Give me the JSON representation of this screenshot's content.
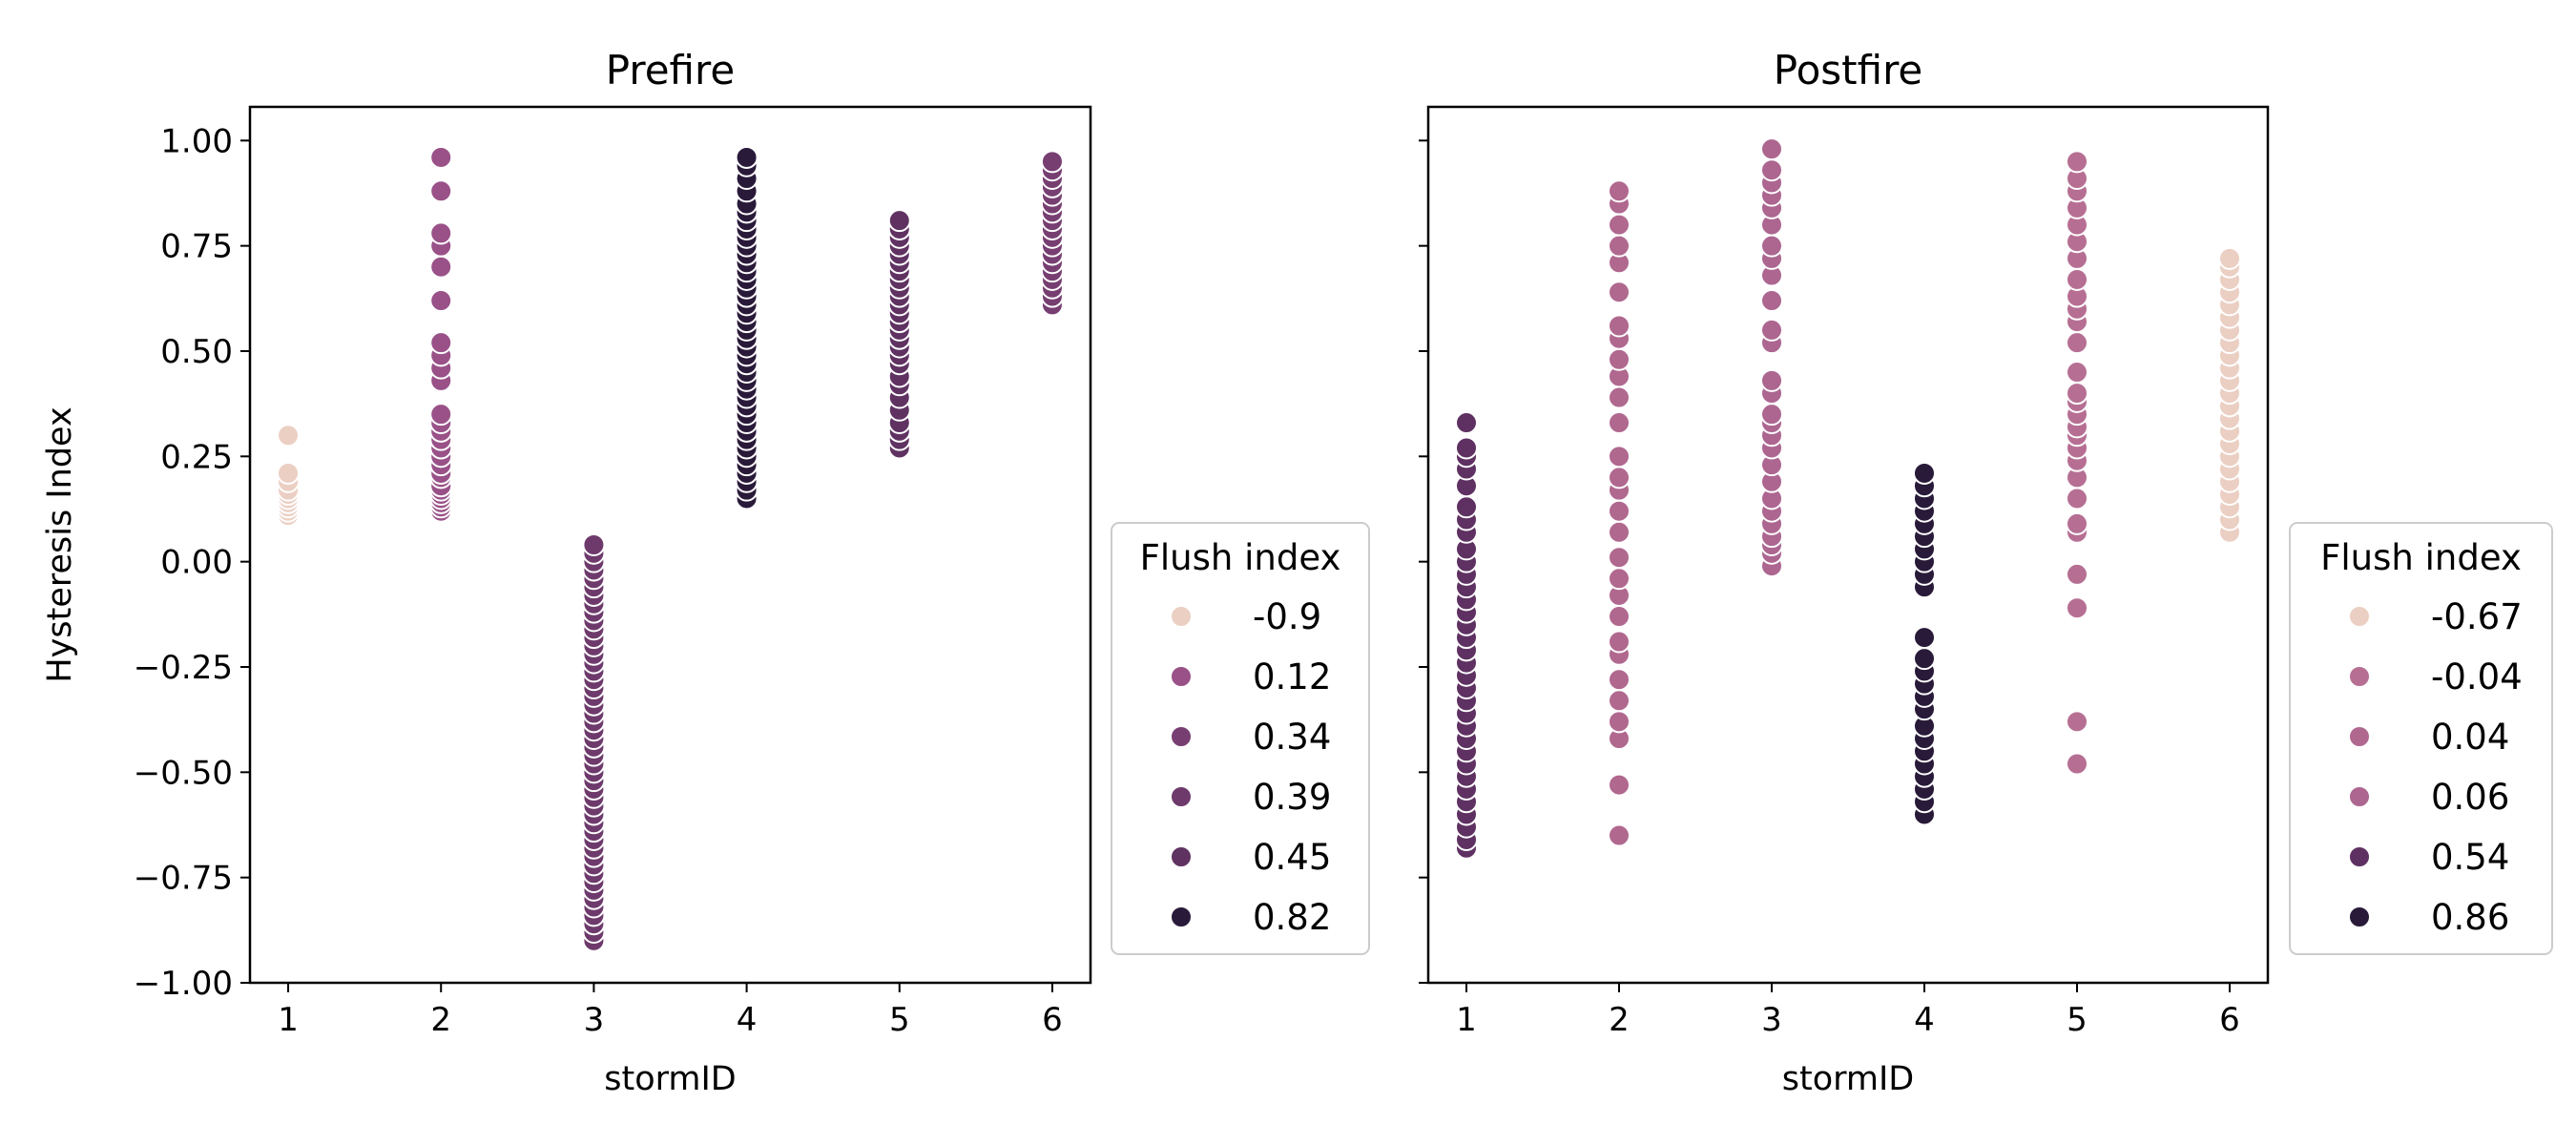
{
  "figure": {
    "background": "#ffffff",
    "shared_ylabel": "Hysteresis Index"
  },
  "chart_data": [
    {
      "type": "scatter",
      "title": "Prefire",
      "xlabel": "stormID",
      "ylabel": "Hysteresis Index",
      "xlim": [
        0.75,
        6.25
      ],
      "ylim": [
        -1.0,
        1.08
      ],
      "xticks": [
        1,
        2,
        3,
        4,
        5,
        6
      ],
      "yticks": [
        -1.0,
        -0.75,
        -0.5,
        -0.25,
        0.0,
        0.25,
        0.5,
        0.75,
        1.0
      ],
      "ytick_labels": [
        "−1.00",
        "−0.75",
        "−0.50",
        "−0.25",
        "0.00",
        "0.25",
        "0.50",
        "0.75",
        "1.00"
      ],
      "grid": false,
      "legend": {
        "title": "Flush index",
        "placement": "outside-right",
        "entries": [
          {
            "label": "-0.9",
            "color": "#ebcfc3"
          },
          {
            "label": "0.12",
            "color": "#995188"
          },
          {
            "label": "0.34",
            "color": "#773e72"
          },
          {
            "label": "0.39",
            "color": "#6e3a6c"
          },
          {
            "label": "0.45",
            "color": "#5f3262"
          },
          {
            "label": "0.82",
            "color": "#2a1a3a"
          }
        ]
      },
      "series": [
        {
          "x": 1,
          "flush_index": "-0.9",
          "color": "#ebcfc3",
          "y": [
            0.11,
            0.12,
            0.13,
            0.14,
            0.15,
            0.16,
            0.17,
            0.19,
            0.21,
            0.3
          ]
        },
        {
          "x": 2,
          "flush_index": "0.12",
          "color": "#995188",
          "y": [
            0.12,
            0.13,
            0.14,
            0.15,
            0.16,
            0.17,
            0.18,
            0.2,
            0.21,
            0.23,
            0.25,
            0.27,
            0.29,
            0.31,
            0.33,
            0.35,
            0.43,
            0.46,
            0.49,
            0.52,
            0.62,
            0.7,
            0.75,
            0.78,
            0.88,
            0.96
          ]
        },
        {
          "x": 3,
          "flush_index": "0.39",
          "color": "#6e3a6c",
          "y": [
            -0.9,
            -0.88,
            -0.86,
            -0.84,
            -0.82,
            -0.8,
            -0.78,
            -0.76,
            -0.74,
            -0.72,
            -0.7,
            -0.68,
            -0.66,
            -0.64,
            -0.62,
            -0.6,
            -0.58,
            -0.56,
            -0.54,
            -0.52,
            -0.5,
            -0.48,
            -0.46,
            -0.44,
            -0.42,
            -0.4,
            -0.38,
            -0.36,
            -0.34,
            -0.32,
            -0.3,
            -0.28,
            -0.26,
            -0.24,
            -0.22,
            -0.2,
            -0.18,
            -0.16,
            -0.14,
            -0.12,
            -0.1,
            -0.08,
            -0.06,
            -0.04,
            -0.02,
            0.0,
            0.02,
            0.04
          ]
        },
        {
          "x": 4,
          "flush_index": "0.82",
          "color": "#2a1a3a",
          "y": [
            0.15,
            0.17,
            0.19,
            0.21,
            0.23,
            0.25,
            0.27,
            0.29,
            0.31,
            0.33,
            0.35,
            0.37,
            0.39,
            0.41,
            0.43,
            0.45,
            0.47,
            0.49,
            0.51,
            0.53,
            0.55,
            0.57,
            0.59,
            0.61,
            0.63,
            0.65,
            0.67,
            0.69,
            0.71,
            0.73,
            0.75,
            0.77,
            0.79,
            0.81,
            0.83,
            0.85,
            0.88,
            0.91,
            0.94,
            0.96
          ]
        },
        {
          "x": 5,
          "flush_index": "0.45",
          "color": "#5f3262",
          "y": [
            0.27,
            0.29,
            0.31,
            0.33,
            0.36,
            0.39,
            0.42,
            0.44,
            0.47,
            0.49,
            0.51,
            0.53,
            0.55,
            0.57,
            0.59,
            0.61,
            0.63,
            0.65,
            0.67,
            0.69,
            0.71,
            0.73,
            0.75,
            0.77,
            0.79,
            0.81
          ]
        },
        {
          "x": 6,
          "flush_index": "0.34",
          "color": "#773e72",
          "y": [
            0.61,
            0.63,
            0.65,
            0.67,
            0.69,
            0.71,
            0.73,
            0.75,
            0.77,
            0.79,
            0.81,
            0.83,
            0.85,
            0.87,
            0.89,
            0.91,
            0.93,
            0.95
          ]
        }
      ]
    },
    {
      "type": "scatter",
      "title": "Postfire",
      "xlabel": "stormID",
      "ylabel": "",
      "xlim": [
        0.75,
        6.25
      ],
      "ylim": [
        -1.0,
        1.08
      ],
      "xticks": [
        1,
        2,
        3,
        4,
        5,
        6
      ],
      "yticks": [
        -1.0,
        -0.75,
        -0.5,
        -0.25,
        0.0,
        0.25,
        0.5,
        0.75,
        1.0
      ],
      "ytick_labels": [],
      "grid": false,
      "legend": {
        "title": "Flush index",
        "placement": "outside-right",
        "entries": [
          {
            "label": "-0.67",
            "color": "#ebcfc3"
          },
          {
            "label": "-0.04",
            "color": "#b66f93"
          },
          {
            "label": "0.04",
            "color": "#b0688f"
          },
          {
            "label": "0.06",
            "color": "#ac6690"
          },
          {
            "label": "0.54",
            "color": "#5e3162"
          },
          {
            "label": "0.86",
            "color": "#281a38"
          }
        ]
      },
      "series": [
        {
          "x": 1,
          "flush_index": "0.54",
          "color": "#5e3162",
          "y": [
            -0.68,
            -0.66,
            -0.63,
            -0.6,
            -0.57,
            -0.54,
            -0.51,
            -0.48,
            -0.45,
            -0.42,
            -0.39,
            -0.36,
            -0.33,
            -0.3,
            -0.27,
            -0.24,
            -0.21,
            -0.18,
            -0.15,
            -0.12,
            -0.09,
            -0.06,
            -0.03,
            0.0,
            0.03,
            0.07,
            0.1,
            0.13,
            0.18,
            0.22,
            0.25,
            0.27,
            0.33
          ]
        },
        {
          "x": 2,
          "flush_index": "0.04",
          "color": "#b0688f",
          "y": [
            -0.65,
            -0.53,
            -0.42,
            -0.38,
            -0.33,
            -0.28,
            -0.22,
            -0.19,
            -0.13,
            -0.08,
            -0.04,
            0.01,
            0.07,
            0.12,
            0.17,
            0.2,
            0.25,
            0.33,
            0.39,
            0.44,
            0.48,
            0.53,
            0.56,
            0.64,
            0.71,
            0.75,
            0.8,
            0.85,
            0.88
          ]
        },
        {
          "x": 3,
          "flush_index": "0.06",
          "color": "#ac6690",
          "y": [
            -0.01,
            0.02,
            0.04,
            0.06,
            0.09,
            0.12,
            0.15,
            0.19,
            0.23,
            0.27,
            0.3,
            0.33,
            0.35,
            0.4,
            0.43,
            0.52,
            0.55,
            0.62,
            0.68,
            0.72,
            0.75,
            0.8,
            0.84,
            0.87,
            0.9,
            0.93,
            0.98
          ]
        },
        {
          "x": 4,
          "flush_index": "0.86",
          "color": "#281a38",
          "y": [
            -0.6,
            -0.57,
            -0.54,
            -0.51,
            -0.48,
            -0.45,
            -0.42,
            -0.39,
            -0.35,
            -0.32,
            -0.29,
            -0.26,
            -0.23,
            -0.18,
            -0.06,
            -0.03,
            0.0,
            0.03,
            0.06,
            0.09,
            0.12,
            0.15,
            0.18,
            0.21
          ]
        },
        {
          "x": 5,
          "flush_index": "-0.04",
          "color": "#b66f93",
          "y": [
            -0.48,
            -0.38,
            -0.11,
            -0.03,
            0.07,
            0.09,
            0.15,
            0.2,
            0.24,
            0.27,
            0.3,
            0.32,
            0.35,
            0.38,
            0.4,
            0.45,
            0.52,
            0.57,
            0.6,
            0.63,
            0.67,
            0.72,
            0.76,
            0.8,
            0.84,
            0.88,
            0.91,
            0.95
          ]
        },
        {
          "x": 6,
          "flush_index": "-0.67",
          "color": "#ebcfc3",
          "y": [
            0.07,
            0.1,
            0.13,
            0.16,
            0.19,
            0.22,
            0.25,
            0.28,
            0.31,
            0.34,
            0.37,
            0.4,
            0.43,
            0.46,
            0.49,
            0.52,
            0.55,
            0.58,
            0.61,
            0.64,
            0.67,
            0.7,
            0.72
          ]
        }
      ]
    }
  ]
}
